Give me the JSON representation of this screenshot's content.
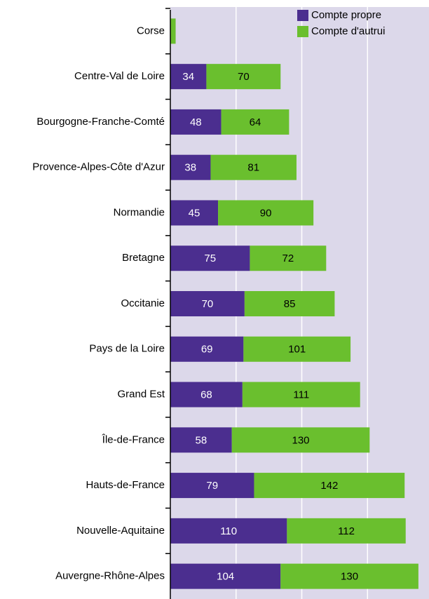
{
  "chart_data": {
    "type": "stacked-barh",
    "categories": [
      "Corse",
      "Centre-Val de Loire",
      "Bourgogne-Franche-Comté",
      "Provence-Alpes-Côte d'Azur",
      "Normandie",
      "Bretagne",
      "Occitanie",
      "Pays de la Loire",
      "Grand Est",
      "Île-de-France",
      "Hauts-de-France",
      "Nouvelle-Aquitaine",
      "Auvergne-Rhône-Alpes"
    ],
    "series": [
      {
        "name": "Compte propre",
        "color": "#4b2e8f",
        "values": [
          0,
          34,
          48,
          38,
          45,
          75,
          70,
          69,
          68,
          58,
          79,
          110,
          104
        ]
      },
      {
        "name": "Compte d'autrui",
        "color": "#6abf2e",
        "values": [
          5,
          70,
          64,
          81,
          90,
          72,
          85,
          101,
          111,
          130,
          142,
          112,
          130
        ]
      }
    ],
    "xlim": [
      0,
      244
    ],
    "xticks": [
      0,
      62,
      124,
      186
    ],
    "grid": true,
    "legend": "upper right"
  }
}
